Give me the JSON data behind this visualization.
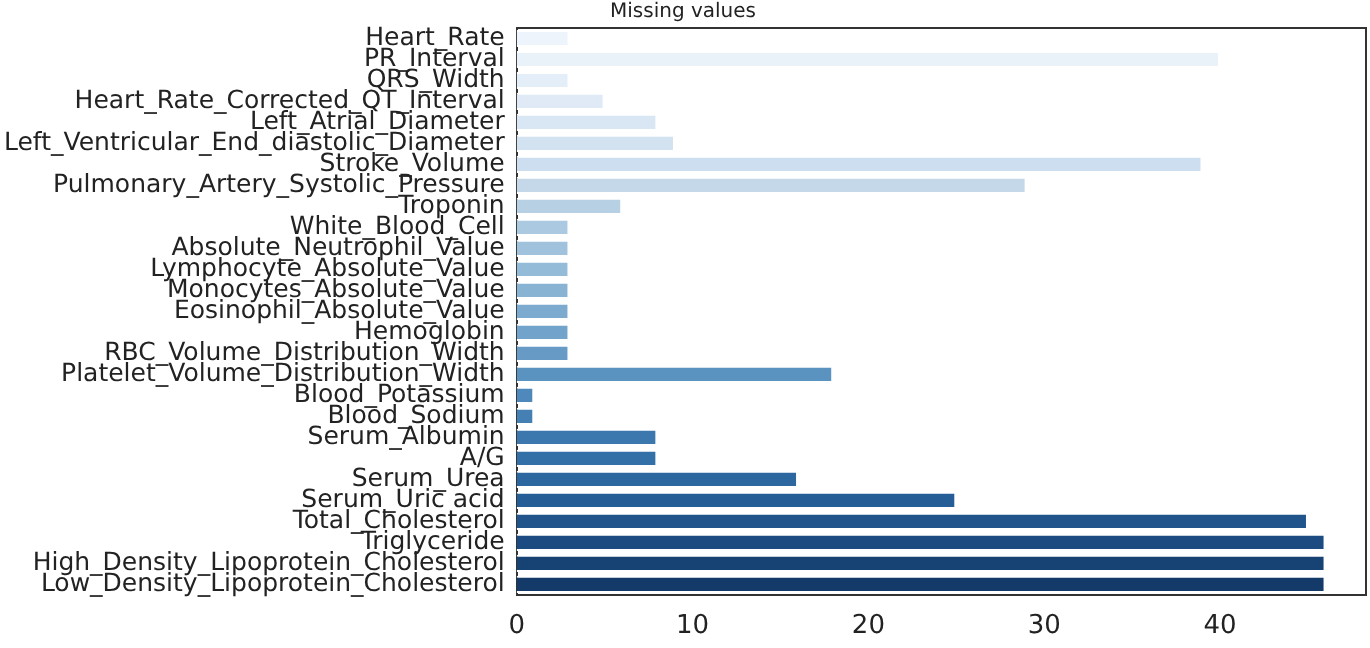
{
  "chart_data": {
    "type": "bar",
    "orientation": "horizontal",
    "title": "Missing values",
    "categories": [
      "Heart_Rate",
      "PR_Interval",
      "QRS_Width",
      "Heart_Rate_Corrected_QT_Interval",
      "Left_Atrial_Diameter",
      "Left_Ventricular_End_diastolic_Diameter",
      "Stroke_Volume",
      "Pulmonary_Artery_Systolic_Pressure",
      "Troponin",
      "White_Blood_Cell",
      "Absolute_Neutrophil_Value",
      "Lymphocyte_Absolute_Value",
      "Monocytes_Absolute_Value",
      "Eosinophil_Absolute_Value",
      "Hemoglobin",
      "RBC_Volume_Distribution_Width",
      "Platelet_Volume_Distribution_Width",
      "Blood_Potassium",
      "Blood_Sodium",
      "Serum_Albumin",
      "A/G",
      "Serum_Urea",
      "Serum_Uric acid",
      "Total_Cholesterol",
      "Triglyceride",
      "High_Density_Lipoprotein_Cholesterol",
      "Low_Density_Lipoprotein_Cholesterol"
    ],
    "values": [
      3,
      40,
      3,
      5,
      8,
      9,
      39,
      29,
      6,
      3,
      3,
      3,
      3,
      3,
      3,
      3,
      18,
      1,
      1,
      8,
      8,
      16,
      25,
      45,
      46,
      46,
      46
    ],
    "colors": [
      "#eef4fb",
      "#e9f1f9",
      "#e4eef8",
      "#dfeaf6",
      "#d9e6f3",
      "#d3e2f1",
      "#ccdeef",
      "#c4d8ea",
      "#b7d0e4",
      "#abc9e0",
      "#a0c2dc",
      "#94bbd8",
      "#88b3d3",
      "#7dabcf",
      "#72a3ca",
      "#679bc5",
      "#5b93c0",
      "#4f89bb",
      "#4580b5",
      "#3c78ae",
      "#3470a8",
      "#2c67a0",
      "#255e96",
      "#20548b",
      "#1b4b80",
      "#174274",
      "#133a68"
    ],
    "xlim": [
      0,
      48.3
    ],
    "xticks": [
      0,
      10,
      20,
      30,
      40
    ],
    "grid": false,
    "legend": false
  }
}
